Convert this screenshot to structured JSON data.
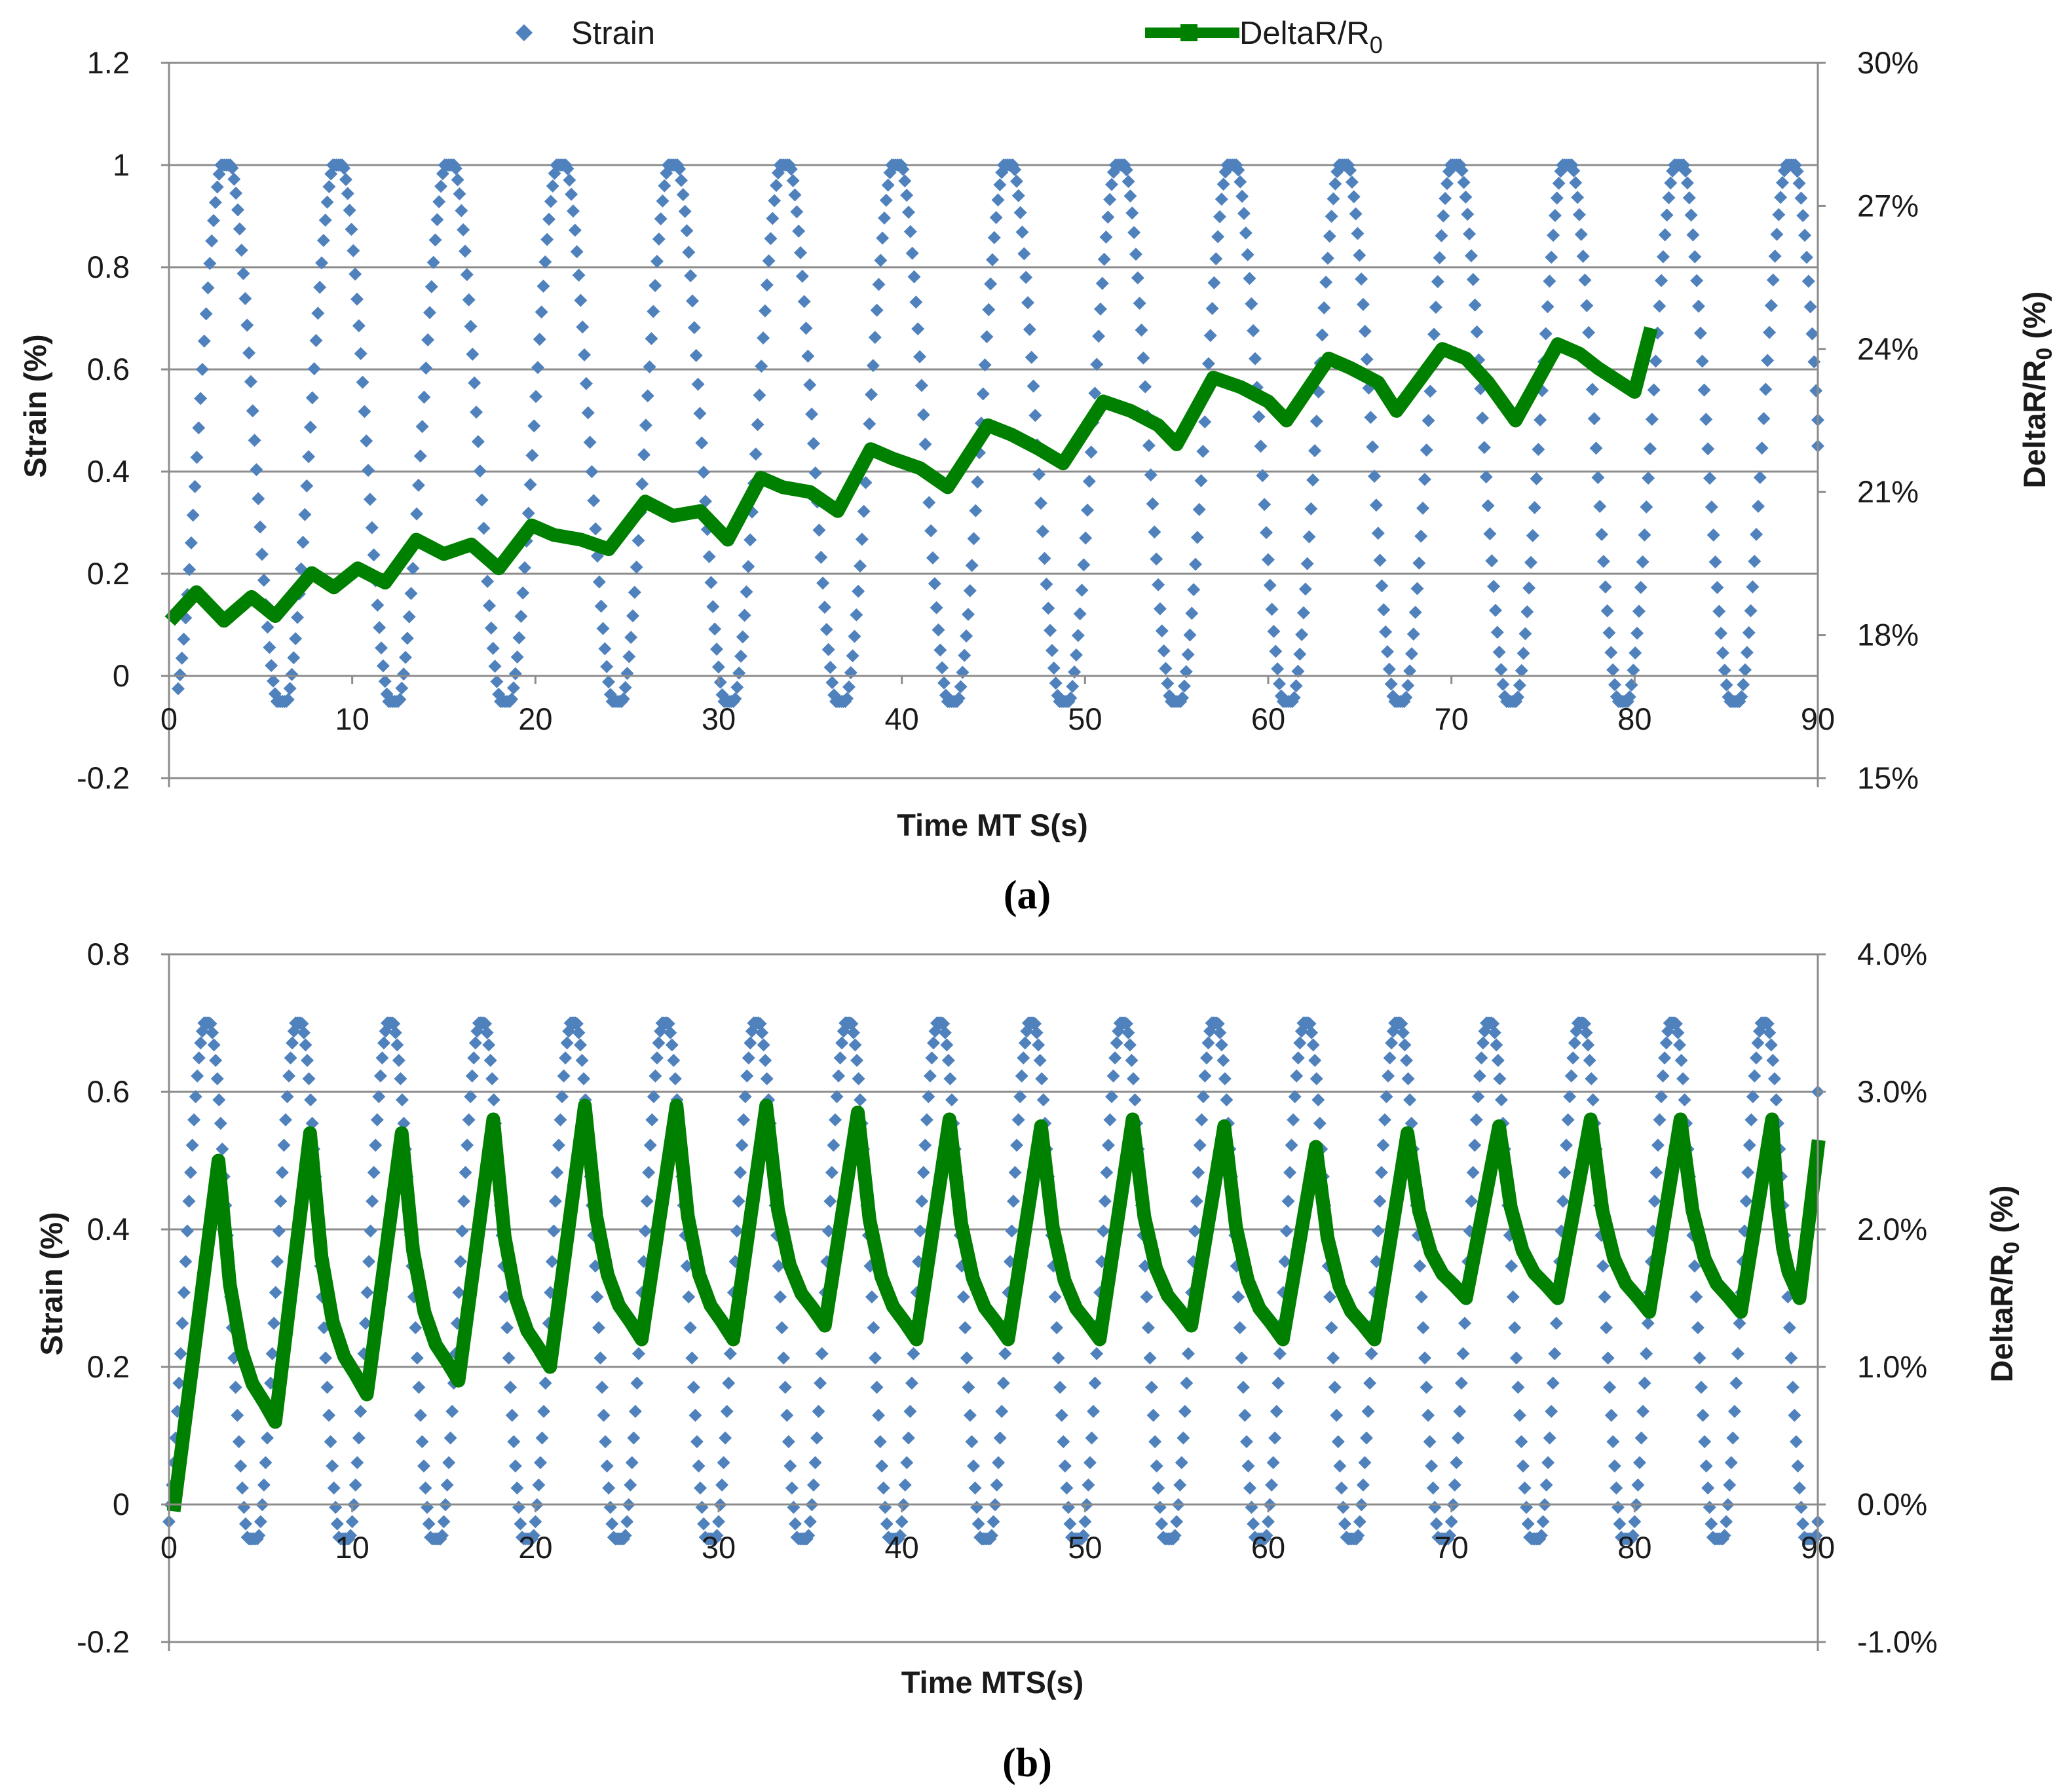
{
  "legend": {
    "strain_label": "Strain",
    "delta_label_main": "DeltaR/R",
    "delta_label_sub": "0"
  },
  "colors": {
    "strain": "#4f81bd",
    "delta": "#008000",
    "grid": "#8c8c8c",
    "axis": "#8c8c8c"
  },
  "chart_data": [
    {
      "id": "a",
      "type": "scatter",
      "caption": "(a)",
      "xlabel": "Time MT S(s)",
      "ylabel_left": "Strain (%)",
      "ylabel_right_main": "DeltaR/R",
      "ylabel_right_sub": "0",
      "ylabel_right_suffix": " (%)",
      "xlim": [
        0,
        90
      ],
      "ylim_left": [
        -0.2,
        1.2
      ],
      "ylim_right": [
        15,
        30
      ],
      "x_ticks": [
        0,
        10,
        20,
        30,
        40,
        50,
        60,
        70,
        80,
        90
      ],
      "y_left_ticks": [
        -0.2,
        0,
        0.2,
        0.4,
        0.6,
        0.8,
        1,
        1.2
      ],
      "y_left_tick_labels": [
        "-0.2",
        "0",
        "0.2",
        "0.4",
        "0.6",
        "0.8",
        "1",
        "1.2"
      ],
      "y_right_ticks": [
        15,
        18,
        21,
        24,
        27,
        30
      ],
      "y_right_tick_labels": [
        "15%",
        "18%",
        "21%",
        "24%",
        "27%",
        "30%"
      ],
      "grid": "horizontal",
      "series": [
        {
          "name": "Strain",
          "axis": "left",
          "style": "markers",
          "cycle": {
            "period": 6.1,
            "x_start": 0.5,
            "x_end": 90,
            "min": -0.05,
            "max": 1.0,
            "start_value": 0
          },
          "samples_per_cycle": 60,
          "end_value": 0.45
        },
        {
          "name": "DeltaR/R0",
          "axis": "right",
          "style": "thick-line",
          "values_percent": [
            [
              0.3,
              18.4
            ],
            [
              1.5,
              18.9
            ],
            [
              3.0,
              18.3
            ],
            [
              4.5,
              18.8
            ],
            [
              5.8,
              18.4
            ],
            [
              7.8,
              19.3
            ],
            [
              9.0,
              19.0
            ],
            [
              10.3,
              19.4
            ],
            [
              11.8,
              19.1
            ],
            [
              13.5,
              20.0
            ],
            [
              15.0,
              19.7
            ],
            [
              16.5,
              19.9
            ],
            [
              18.0,
              19.4
            ],
            [
              19.8,
              20.3
            ],
            [
              21.0,
              20.1
            ],
            [
              22.5,
              20.0
            ],
            [
              24.0,
              19.8
            ],
            [
              26.0,
              20.8
            ],
            [
              27.5,
              20.5
            ],
            [
              29.0,
              20.6
            ],
            [
              30.5,
              20.0
            ],
            [
              32.3,
              21.3
            ],
            [
              33.5,
              21.1
            ],
            [
              35.0,
              21.0
            ],
            [
              36.5,
              20.6
            ],
            [
              38.3,
              21.9
            ],
            [
              39.5,
              21.7
            ],
            [
              41.0,
              21.5
            ],
            [
              42.5,
              21.1
            ],
            [
              44.7,
              22.4
            ],
            [
              46.0,
              22.2
            ],
            [
              47.5,
              21.9
            ],
            [
              48.8,
              21.6
            ],
            [
              51.0,
              22.9
            ],
            [
              52.5,
              22.7
            ],
            [
              54.0,
              22.4
            ],
            [
              55.0,
              22.0
            ],
            [
              57.0,
              23.4
            ],
            [
              58.5,
              23.2
            ],
            [
              60.0,
              22.9
            ],
            [
              61.0,
              22.5
            ],
            [
              63.3,
              23.8
            ],
            [
              64.5,
              23.6
            ],
            [
              66.0,
              23.3
            ],
            [
              67.0,
              22.7
            ],
            [
              69.5,
              24.0
            ],
            [
              70.8,
              23.8
            ],
            [
              72.0,
              23.3
            ],
            [
              73.5,
              22.5
            ],
            [
              75.8,
              24.1
            ],
            [
              77.0,
              23.9
            ],
            [
              78.0,
              23.6
            ],
            [
              80.0,
              23.1
            ],
            [
              80.8,
              24.3
            ]
          ]
        }
      ]
    },
    {
      "id": "b",
      "type": "scatter",
      "caption": "(b)",
      "xlabel": "Time MTS(s)",
      "ylabel_left": "Strain (%)",
      "ylabel_right_main": "DeltaR/R",
      "ylabel_right_sub": "0",
      "ylabel_right_suffix": " (%)",
      "xlim": [
        0,
        90
      ],
      "ylim_left": [
        -0.2,
        0.8
      ],
      "ylim_right": [
        -1.0,
        4.0
      ],
      "x_ticks": [
        0,
        10,
        20,
        30,
        40,
        50,
        60,
        70,
        80,
        90
      ],
      "y_left_ticks": [
        -0.2,
        0,
        0.2,
        0.4,
        0.6,
        0.8
      ],
      "y_left_tick_labels": [
        "-0.2",
        "0",
        "0.2",
        "0.4",
        "0.6",
        "0.8"
      ],
      "y_right_ticks": [
        -1.0,
        0.0,
        1.0,
        2.0,
        3.0,
        4.0
      ],
      "y_right_tick_labels": [
        "-1.0%",
        "0.0%",
        "1.0%",
        "2.0%",
        "3.0%",
        "4.0%"
      ],
      "grid": "horizontal",
      "series": [
        {
          "name": "Strain",
          "axis": "left",
          "style": "markers",
          "cycle": {
            "period": 5.0,
            "x_start": 0.0,
            "x_end": 90,
            "min": -0.05,
            "max": 0.7,
            "start_value": 0
          },
          "samples_per_cycle": 55,
          "end_value": 0.6
        },
        {
          "name": "DeltaR/R0",
          "axis": "right",
          "style": "thick-line",
          "peaks": [
            [
              2.7,
              2.5
            ],
            [
              7.7,
              2.7
            ],
            [
              12.7,
              2.7
            ],
            [
              17.7,
              2.8
            ],
            [
              22.7,
              2.9
            ],
            [
              27.7,
              2.9
            ],
            [
              32.6,
              2.9
            ],
            [
              37.6,
              2.85
            ],
            [
              42.6,
              2.8
            ],
            [
              47.6,
              2.75
            ],
            [
              52.6,
              2.8
            ],
            [
              57.6,
              2.75
            ],
            [
              62.6,
              2.6
            ],
            [
              67.6,
              2.7
            ],
            [
              72.6,
              2.75
            ],
            [
              77.6,
              2.8
            ],
            [
              82.5,
              2.8
            ],
            [
              87.5,
              2.8
            ]
          ],
          "troughs": [
            [
              0.3,
              0.0
            ],
            [
              5.8,
              0.6
            ],
            [
              10.8,
              0.8
            ],
            [
              15.8,
              0.9
            ],
            [
              20.8,
              1.0
            ],
            [
              25.8,
              1.2
            ],
            [
              30.8,
              1.2
            ],
            [
              35.8,
              1.3
            ],
            [
              40.8,
              1.2
            ],
            [
              45.8,
              1.2
            ],
            [
              50.8,
              1.2
            ],
            [
              55.8,
              1.3
            ],
            [
              60.8,
              1.2
            ],
            [
              65.8,
              1.2
            ],
            [
              70.8,
              1.5
            ],
            [
              75.8,
              1.5
            ],
            [
              80.8,
              1.4
            ],
            [
              85.8,
              1.4
            ],
            [
              89.0,
              1.5
            ]
          ],
          "end_value": 2.6
        }
      ]
    }
  ]
}
